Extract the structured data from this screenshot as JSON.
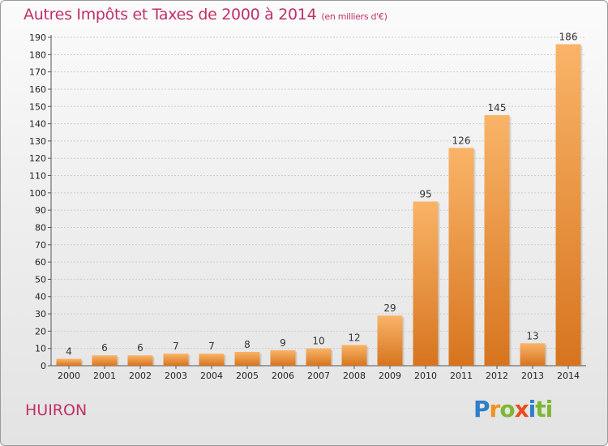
{
  "header": {
    "title": "Autres Impôts et Taxes de 2000 à 2014",
    "unit": "(en milliers d'€)"
  },
  "footer": {
    "place": "HUIRON",
    "brand": [
      "P",
      "r",
      "o",
      "x",
      "i",
      "ti"
    ]
  },
  "colors": {
    "title": "#c0306a",
    "bar_light": "#f9b468",
    "bar_dark": "#d7741e",
    "grid": "#cccccc"
  },
  "chart_data": {
    "type": "bar",
    "title": "Autres Impôts et Taxes de 2000 à 2014",
    "subtitle": "(en milliers d'€)",
    "xlabel": "",
    "ylabel": "",
    "categories": [
      "2000",
      "2001",
      "2002",
      "2003",
      "2004",
      "2005",
      "2006",
      "2007",
      "2008",
      "2009",
      "2010",
      "2011",
      "2012",
      "2013",
      "2014"
    ],
    "values": [
      4,
      6,
      6,
      7,
      7,
      8,
      9,
      10,
      12,
      29,
      95,
      126,
      145,
      13,
      186
    ],
    "ylim": [
      0,
      190
    ],
    "yticks": [
      0,
      10,
      20,
      30,
      40,
      50,
      60,
      70,
      80,
      90,
      100,
      110,
      120,
      130,
      140,
      150,
      160,
      170,
      180,
      190
    ],
    "grid": true,
    "legend": "none"
  }
}
